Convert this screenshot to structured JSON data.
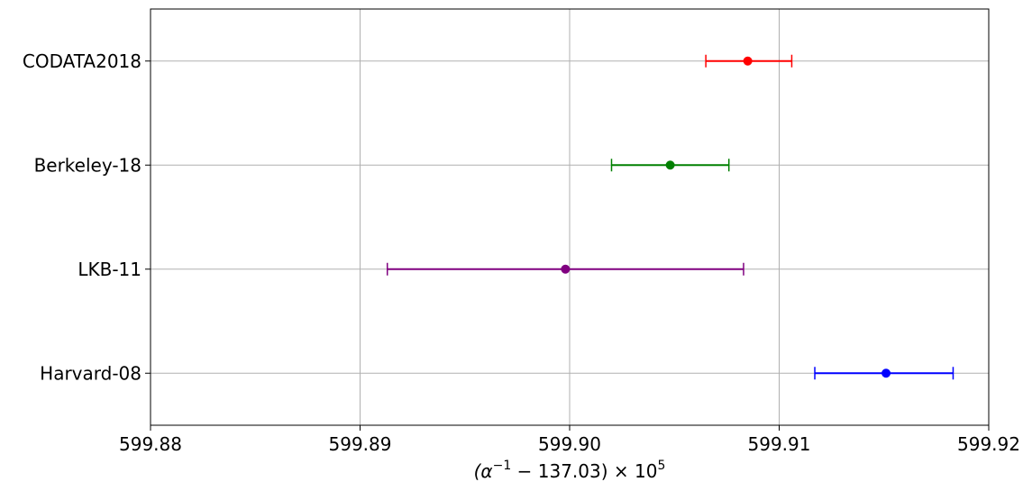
{
  "chart_data": {
    "type": "scatter",
    "title": "",
    "xlabel": "(α⁻¹ − 137.03) × 10⁵",
    "xlabel_parts": {
      "prefix": "(α",
      "sup1": "−1",
      "middle": " − 137.03) × 10",
      "sup2": "5"
    },
    "ylabel": "",
    "xlim": [
      599.88,
      599.92
    ],
    "x_ticks": [
      599.88,
      599.89,
      599.9,
      599.91,
      599.92
    ],
    "x_tick_labels": [
      "599.88",
      "599.89",
      "599.90",
      "599.91",
      "599.92"
    ],
    "categories": [
      "Harvard-08",
      "LKB-11",
      "Berkeley-18",
      "CODATA2018"
    ],
    "grid": true,
    "series": [
      {
        "category": "Harvard-08",
        "value": 599.9151,
        "xerr_low": 599.9117,
        "xerr_high": 599.9183,
        "color": "#0000ff"
      },
      {
        "category": "LKB-11",
        "value": 599.8998,
        "xerr_low": 599.8913,
        "xerr_high": 599.9083,
        "color": "#800080"
      },
      {
        "category": "Berkeley-18",
        "value": 599.9048,
        "xerr_low": 599.902,
        "xerr_high": 599.9076,
        "color": "#008000"
      },
      {
        "category": "CODATA2018",
        "value": 599.9085,
        "xerr_low": 599.9065,
        "xerr_high": 599.9106,
        "color": "#ff0000"
      }
    ]
  }
}
